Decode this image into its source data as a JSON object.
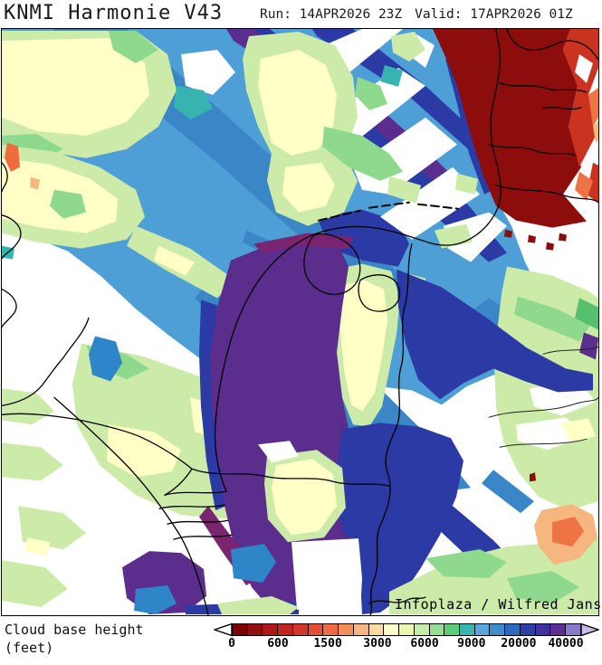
{
  "header": {
    "title": "KNMI Harmonie V43",
    "run": "Run: 14APR2026 23Z",
    "valid": "Valid: 17APR2026 01Z"
  },
  "map": {
    "attribution": "Infoplaza / Wilfred Janssen",
    "region_colors": {
      "no_cloud_white": "#ffffff",
      "very_low_maroon": "#8d0d0d",
      "low_red": "#c9331f",
      "low_orange": "#ee7345",
      "mid_cream": "#ffffc6",
      "mid_pale_green": "#cdeba8",
      "mid_green": "#8fd98f",
      "teal": "#38b4b0",
      "high_light_blue": "#4f9fd7",
      "high_blue": "#3a86c6",
      "very_high_navy": "#2b3aa5",
      "very_high_violet": "#5b2d8c",
      "very_high_magenta": "#7b2470"
    }
  },
  "legend": {
    "label_line1": "Cloud base height",
    "label_line2": "(feet)",
    "unit": "feet",
    "ticks": [
      "0",
      "600",
      "1500",
      "3000",
      "6000",
      "9000",
      "20000",
      "40000"
    ],
    "tick_positions_pct": [
      0,
      13.2,
      27.5,
      41.7,
      55.2,
      68.6,
      82.1,
      95.6
    ],
    "cell_colors": [
      "#7a0403",
      "#960f0f",
      "#b01717",
      "#c22420",
      "#d5352a",
      "#e44d37",
      "#ef6a44",
      "#f28f59",
      "#f6b67f",
      "#fbdaa6",
      "#ffffc6",
      "#eaf6ae",
      "#c7ecaa",
      "#97de92",
      "#60cc79",
      "#38b4b0",
      "#57a7dc",
      "#3e8ccb",
      "#2e69bf",
      "#2b3fa9",
      "#42319e",
      "#5e2d91",
      "#8b7ac9"
    ],
    "left_arrow_color": "#ffffff",
    "right_arrow_color": "#c6bce6"
  }
}
